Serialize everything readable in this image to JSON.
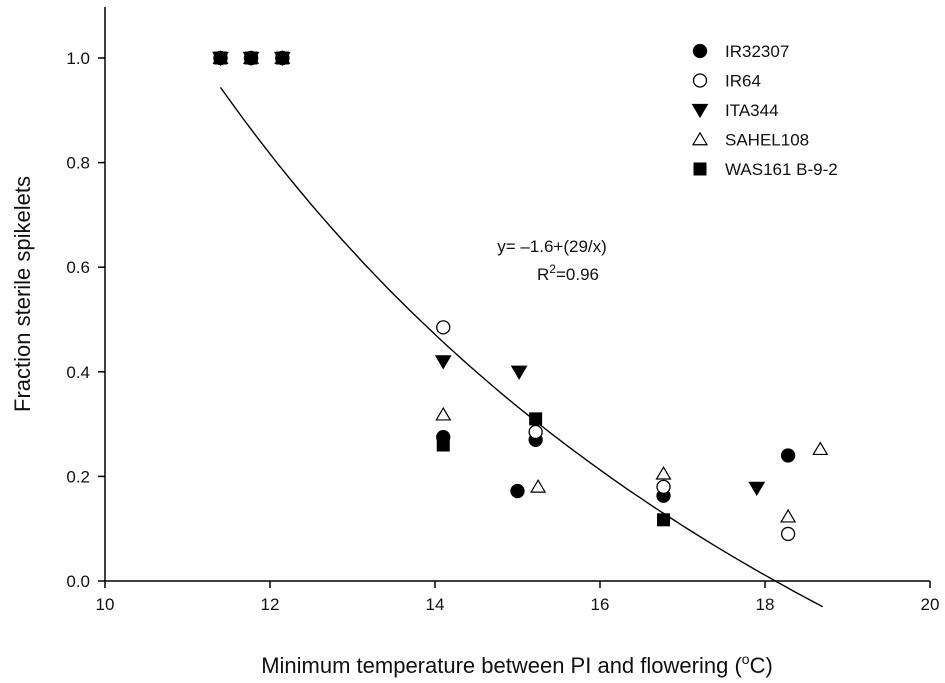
{
  "chart_data": {
    "type": "scatter",
    "xlabel": "Minimum temperature between PI and flowering",
    "xlabel_unit_prefix": "(",
    "xlabel_unit_sup": "o",
    "xlabel_unit_suffix": "C)",
    "ylabel": "Fraction sterile spikelets",
    "xlim": [
      10,
      20
    ],
    "ylim": [
      0,
      1.1
    ],
    "xticks": [
      "10",
      "12",
      "14",
      "16",
      "18",
      "20"
    ],
    "yticks": [
      "0.0",
      "0.2",
      "0.4",
      "0.6",
      "0.8",
      "1.0"
    ],
    "legend_position": "top-right",
    "series": [
      {
        "name": "IR32307",
        "marker": "filled-circle",
        "x": [
          11.4,
          11.77,
          12.15,
          14.1,
          15.0,
          15.22,
          16.77,
          18.28
        ],
        "y": [
          1.0,
          1.0,
          1.0,
          0.275,
          0.172,
          0.27,
          0.163,
          0.24
        ]
      },
      {
        "name": "IR64",
        "marker": "open-circle",
        "x": [
          11.4,
          11.77,
          12.15,
          14.1,
          15.22,
          16.77,
          18.28
        ],
        "y": [
          1.0,
          1.0,
          1.0,
          0.485,
          0.285,
          0.18,
          0.09
        ]
      },
      {
        "name": "ITA344",
        "marker": "filled-triangle-down",
        "x": [
          11.4,
          11.77,
          12.15,
          14.1,
          15.02,
          17.9
        ],
        "y": [
          1.0,
          1.0,
          1.0,
          0.42,
          0.4,
          0.178
        ]
      },
      {
        "name": "SAHEL108",
        "marker": "open-triangle-up",
        "x": [
          11.4,
          11.77,
          12.15,
          14.1,
          15.25,
          16.77,
          18.28,
          18.67
        ],
        "y": [
          1.0,
          1.0,
          1.0,
          0.318,
          0.18,
          0.205,
          0.123,
          0.252
        ]
      },
      {
        "name": "WAS161 B-9-2",
        "marker": "filled-square",
        "x": [
          11.4,
          11.77,
          12.15,
          14.1,
          15.22,
          16.77
        ],
        "y": [
          1.0,
          1.0,
          1.0,
          0.26,
          0.31,
          0.117
        ]
      }
    ],
    "fit": {
      "equation_text": "y= –1.6+(29/x)",
      "r2_label": "R",
      "r2_sup": "2",
      "r2_value": "=0.96",
      "a": -1.6,
      "b": 29,
      "x_range": [
        11.4,
        18.7
      ]
    }
  }
}
